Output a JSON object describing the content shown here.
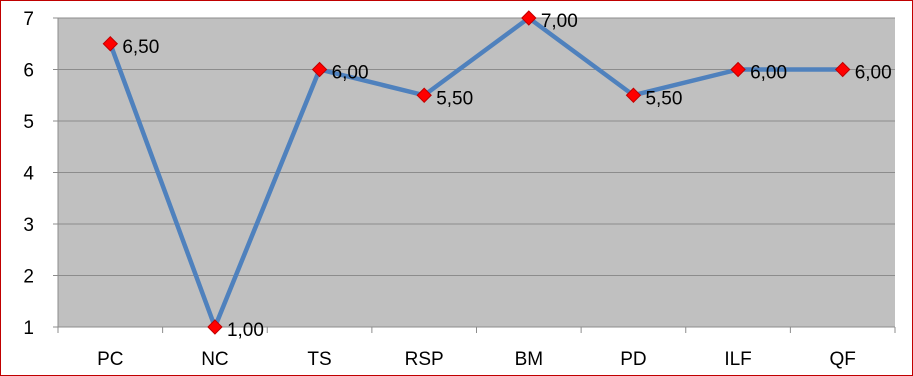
{
  "chart_data": {
    "type": "line",
    "title": "",
    "xlabel": "",
    "ylabel": "",
    "categories": [
      "PC",
      "NC",
      "TS",
      "RSP",
      "BM",
      "PD",
      "ILF",
      "QF"
    ],
    "series": [
      {
        "values": [
          6.5,
          1.0,
          6.0,
          5.5,
          7.0,
          5.5,
          6.0,
          6.0
        ],
        "labels": [
          "6,50",
          "1,00",
          "6,00",
          "5,50",
          "7,00",
          "5,50",
          "6,00",
          "6,00"
        ]
      }
    ],
    "ylim": [
      1,
      7
    ],
    "yticks": [
      "1",
      "2",
      "3",
      "4",
      "5",
      "6",
      "7"
    ],
    "grid": true,
    "legend": "none",
    "colors": {
      "line": "#4f81bd",
      "marker_fill": "#ff0000",
      "marker_stroke": "#c00000",
      "plot_background": "#c0c0c0",
      "gridline": "#8c8c8c",
      "border": "#c00000"
    }
  }
}
